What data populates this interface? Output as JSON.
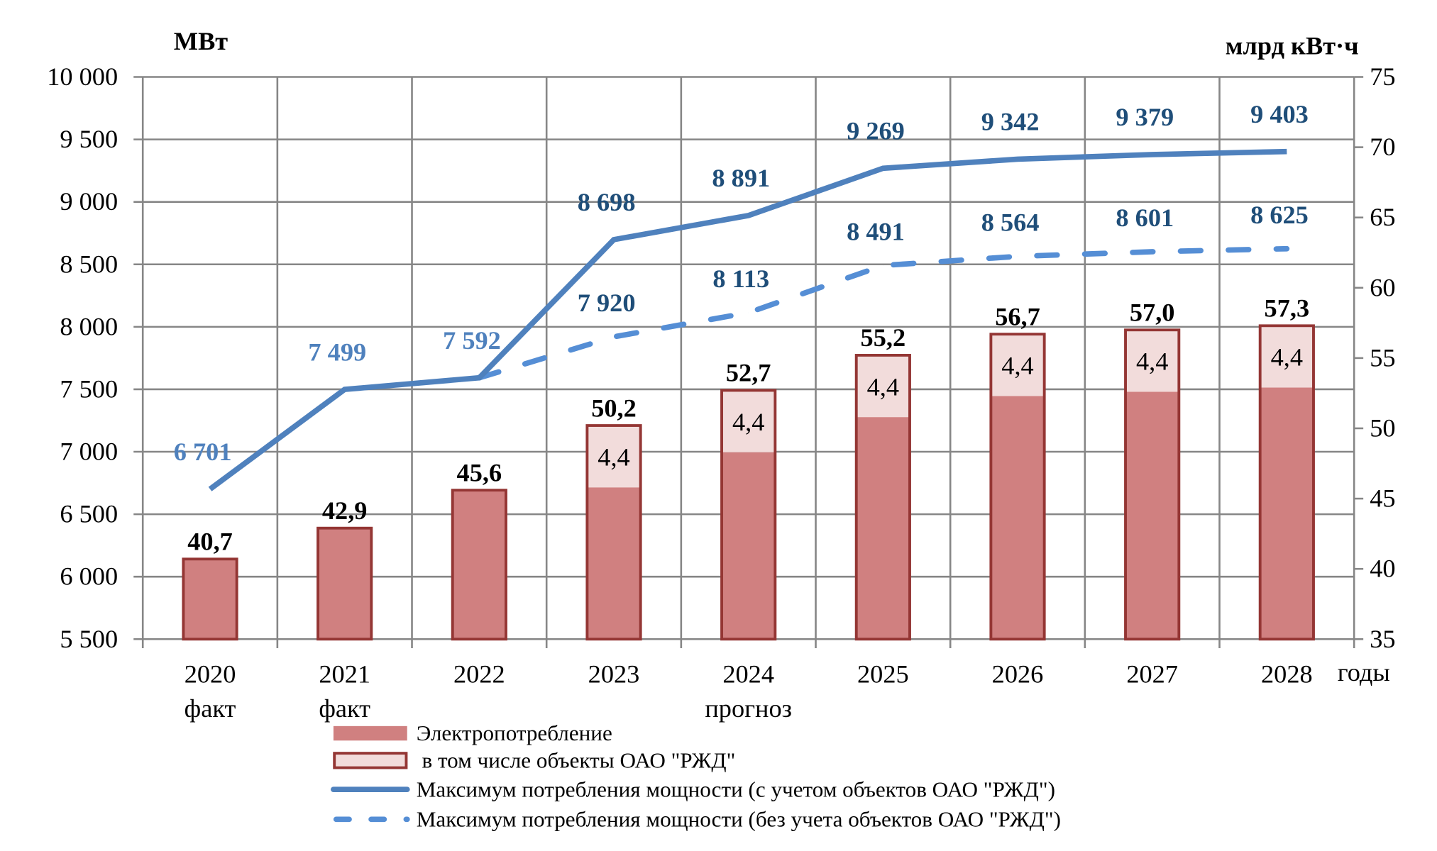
{
  "chart_data": {
    "type": "bar+line",
    "left_axis": {
      "label": "МВт",
      "ylim": [
        5500,
        10000
      ],
      "ticks": [
        "5 500",
        "6 000",
        "6 500",
        "7 000",
        "7 500",
        "8 000",
        "8 500",
        "9 000",
        "9 500",
        "10 000"
      ],
      "tick_values": [
        5500,
        6000,
        6500,
        7000,
        7500,
        8000,
        8500,
        9000,
        9500,
        10000
      ]
    },
    "right_axis": {
      "label": "млрд кВт·ч",
      "ylim": [
        35,
        75
      ],
      "ticks": [
        "35",
        "40",
        "45",
        "50",
        "55",
        "60",
        "65",
        "70",
        "75"
      ],
      "tick_values": [
        35,
        40,
        45,
        50,
        55,
        60,
        65,
        70,
        75
      ]
    },
    "xlabel": "годы",
    "categories": [
      "2020",
      "2021",
      "2022",
      "2023",
      "2024",
      "2025",
      "2026",
      "2027",
      "2028"
    ],
    "category_sublabels": [
      "факт",
      "факт",
      "",
      "",
      "прогноз",
      "",
      "",
      "",
      ""
    ],
    "grid": true,
    "series": [
      {
        "name": "Электропотребление",
        "type": "bar",
        "axis": "right",
        "values": [
          40.7,
          42.9,
          45.6,
          50.2,
          52.7,
          55.2,
          56.7,
          57.0,
          57.3
        ],
        "labels": [
          "40,7",
          "42,9",
          "45,6",
          "50,2",
          "52,7",
          "55,2",
          "56,7",
          "57,0",
          "57,3"
        ],
        "color": "#d08080",
        "border": "#943634"
      },
      {
        "name": "в том числе объекты ОАО \"РЖД\"",
        "type": "bar-part",
        "axis": "right",
        "values": [
          null,
          null,
          null,
          4.4,
          4.4,
          4.4,
          4.4,
          4.4,
          4.4
        ],
        "labels": [
          "",
          "",
          "",
          "4,4",
          "4,4",
          "4,4",
          "4,4",
          "4,4",
          "4,4"
        ],
        "color": "#f2dcdb",
        "border": "#943634"
      },
      {
        "name": "Максимум потребления мощности (с учетом объектов  ОАО \"РЖД\")",
        "type": "line",
        "axis": "left",
        "values": [
          6701,
          7499,
          7592,
          8698,
          8891,
          9269,
          9342,
          9379,
          9403
        ],
        "labels": [
          "6 701",
          "7 499",
          "7 592",
          "8 698",
          "8 891",
          "9 269",
          "9 342",
          "9 379",
          "9 403"
        ],
        "color": "#4f81bd"
      },
      {
        "name": "Максимум потребления мощности (без учета объектов ОАО \"РЖД\")",
        "type": "line-dashed",
        "axis": "left",
        "values": [
          null,
          null,
          7592,
          7920,
          8113,
          8491,
          8564,
          8601,
          8625
        ],
        "labels": [
          "",
          "",
          "",
          "7 920",
          "8 113",
          "8 491",
          "8 564",
          "8 601",
          "8 625"
        ],
        "color": "#558ed5"
      }
    ],
    "label_colors": {
      "light": "#4f81bd",
      "dark": "#1f4e79"
    },
    "legend_position": "bottom"
  }
}
